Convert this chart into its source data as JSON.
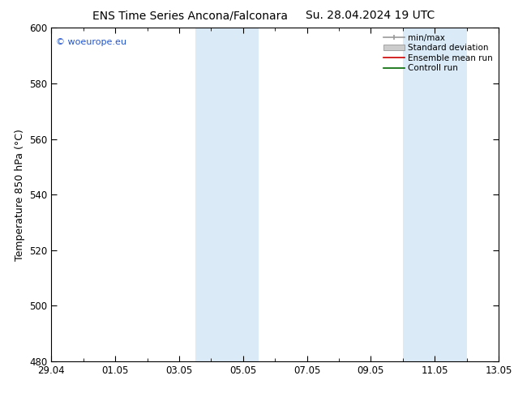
{
  "title_left": "ENS Time Series Ancona/Falconara",
  "title_right": "Su. 28.04.2024 19 UTC",
  "ylabel": "Temperature 850 hPa (°C)",
  "ylim": [
    480,
    600
  ],
  "yticks": [
    480,
    500,
    520,
    540,
    560,
    580,
    600
  ],
  "xlim": [
    0,
    14
  ],
  "xtick_labels": [
    "29.04",
    "01.05",
    "03.05",
    "05.05",
    "07.05",
    "09.05",
    "11.05",
    "13.05"
  ],
  "xtick_positions": [
    0,
    2,
    4,
    6,
    8,
    10,
    12,
    14
  ],
  "watermark": "© woeurope.eu",
  "watermark_color": "#2255cc",
  "legend_items": [
    {
      "label": "min/max",
      "color": "#999999",
      "style": "minmax"
    },
    {
      "label": "Standard deviation",
      "color": "#cccccc",
      "style": "stddev"
    },
    {
      "label": "Ensemble mean run",
      "color": "#cc0000",
      "style": "line"
    },
    {
      "label": "Controll run",
      "color": "#006600",
      "style": "line"
    }
  ],
  "shaded_bands": [
    {
      "x_start": 4.5,
      "x_end": 6.5,
      "color": "#daeaf7"
    },
    {
      "x_start": 11.0,
      "x_end": 13.0,
      "color": "#daeaf7"
    }
  ],
  "background_color": "#ffffff",
  "plot_bg_color": "#ffffff",
  "axis_color": "#000000",
  "title_fontsize": 10,
  "label_fontsize": 9,
  "tick_fontsize": 8.5,
  "legend_fontsize": 7.5
}
